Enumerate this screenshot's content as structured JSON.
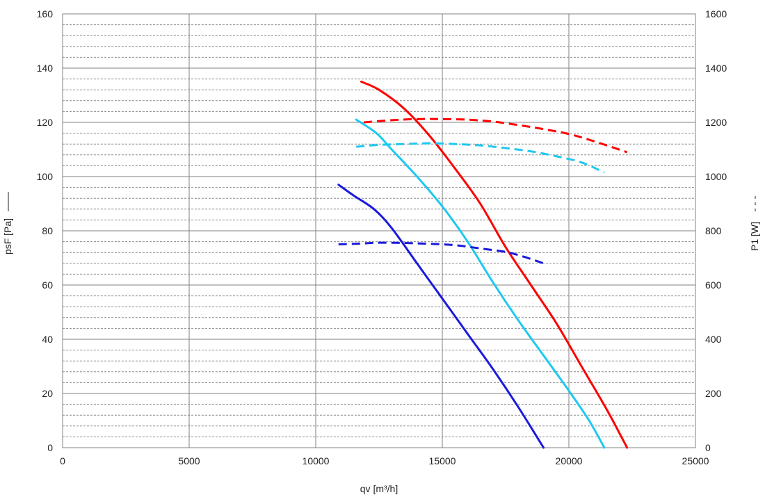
{
  "chart_data": {
    "type": "line",
    "xlabel": "qv [m³/h]",
    "ylabel": "psF [Pa]",
    "y2label": "P1 [W]",
    "xlim": [
      0,
      25000
    ],
    "ylim": [
      0,
      160
    ],
    "y2lim": [
      0,
      1600
    ],
    "x_ticks": [
      "0",
      "5000",
      "10000",
      "15000",
      "20000",
      "25000"
    ],
    "y_ticks": [
      "0",
      "20",
      "40",
      "60",
      "80",
      "100",
      "120",
      "140",
      "160"
    ],
    "y2_ticks": [
      "0",
      "200",
      "400",
      "600",
      "800",
      "1000",
      "1200",
      "1400",
      "1600"
    ],
    "grid": true,
    "legend": "none",
    "series": [
      {
        "axis": "left",
        "style": "solid",
        "color": "#ff0000",
        "points": [
          [
            11800,
            135
          ],
          [
            12500,
            132
          ],
          [
            13500,
            125
          ],
          [
            14500,
            115
          ],
          [
            15500,
            103
          ],
          [
            16500,
            90
          ],
          [
            17500,
            74
          ],
          [
            18500,
            60
          ],
          [
            19500,
            46
          ],
          [
            20500,
            30
          ],
          [
            21500,
            14
          ],
          [
            22300,
            0
          ]
        ]
      },
      {
        "axis": "left",
        "style": "solid",
        "color": "#1ec8f0",
        "points": [
          [
            11600,
            121
          ],
          [
            12400,
            116
          ],
          [
            13000,
            110
          ],
          [
            14000,
            100
          ],
          [
            15000,
            89
          ],
          [
            16000,
            76
          ],
          [
            17000,
            61
          ],
          [
            18000,
            47
          ],
          [
            19000,
            34
          ],
          [
            20000,
            21
          ],
          [
            20800,
            10
          ],
          [
            21400,
            0
          ]
        ]
      },
      {
        "axis": "left",
        "style": "solid",
        "color": "#1a1adc",
        "points": [
          [
            10900,
            97
          ],
          [
            11500,
            93
          ],
          [
            12300,
            88
          ],
          [
            13000,
            81
          ],
          [
            14000,
            68
          ],
          [
            15000,
            55
          ],
          [
            16000,
            42
          ],
          [
            17000,
            29
          ],
          [
            18000,
            15
          ],
          [
            19000,
            0
          ]
        ]
      },
      {
        "axis": "right",
        "style": "dashed",
        "color": "#ff0000",
        "points": [
          [
            11900,
            1200
          ],
          [
            13000,
            1208
          ],
          [
            14000,
            1212
          ],
          [
            15000,
            1212
          ],
          [
            16000,
            1210
          ],
          [
            17000,
            1203
          ],
          [
            18000,
            1190
          ],
          [
            19000,
            1175
          ],
          [
            20000,
            1157
          ],
          [
            21000,
            1130
          ],
          [
            22300,
            1090
          ]
        ]
      },
      {
        "axis": "right",
        "style": "dashed",
        "color": "#1ec8f0",
        "points": [
          [
            11600,
            1110
          ],
          [
            12500,
            1117
          ],
          [
            13500,
            1120
          ],
          [
            14500,
            1123
          ],
          [
            15500,
            1120
          ],
          [
            16500,
            1115
          ],
          [
            17500,
            1105
          ],
          [
            18500,
            1093
          ],
          [
            19500,
            1075
          ],
          [
            20500,
            1052
          ],
          [
            21400,
            1015
          ]
        ]
      },
      {
        "axis": "right",
        "style": "dashed",
        "color": "#1a1adc",
        "points": [
          [
            10900,
            750
          ],
          [
            11800,
            753
          ],
          [
            12500,
            756
          ],
          [
            13500,
            755
          ],
          [
            14500,
            752
          ],
          [
            15500,
            747
          ],
          [
            16500,
            735
          ],
          [
            17500,
            722
          ],
          [
            18200,
            705
          ],
          [
            19000,
            680
          ]
        ]
      }
    ]
  }
}
